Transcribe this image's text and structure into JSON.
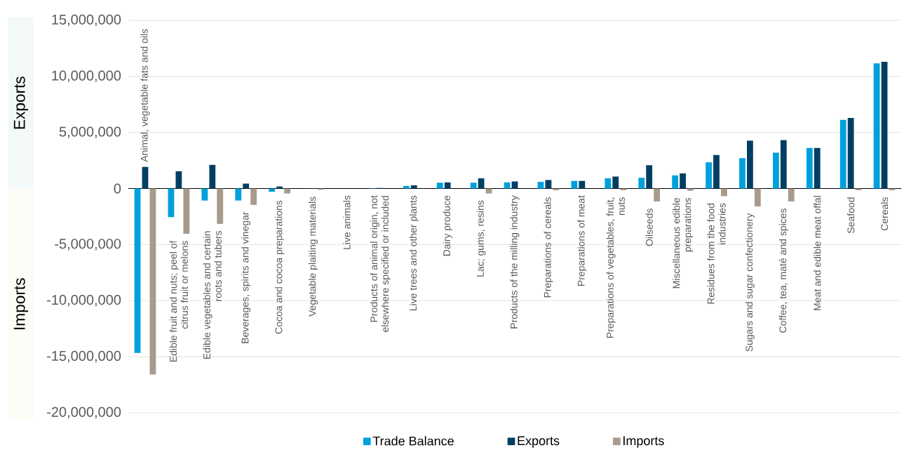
{
  "chart_data": {
    "type": "bar",
    "categories": [
      "Animal, vegetable fats and oils",
      "Edible fruit and nuts; peel of citrus fruit or melons",
      "Edible vegetables and certain roots and tubers",
      "Beverages, spirits and vinegar",
      "Cocoa and cocoa preparations",
      "Vegetable plaiting materials",
      "Live animals",
      "Products of animal origin, not elsewhere specified or included",
      "Live trees and other plants",
      "Dairy produce",
      "Lac; gums, resins",
      "Products of the milling industry",
      "Preparations of cereals",
      "Preparations of meat",
      "Preparations of vegetables, fruit, nuts",
      "Oilseeds",
      "Miscellaneous edible preparations",
      "Residues from the food industries",
      "Sugars and sugar confectionery",
      "Coffee, tea, maté and spices",
      "Meat and edible meat offal",
      "Seafood",
      "Cereals"
    ],
    "series": [
      {
        "name": "Trade Balance",
        "color": "#00a0dc",
        "values": [
          -14660000,
          -2550000,
          -1070000,
          -1070000,
          -290000,
          null,
          0,
          30000,
          230000,
          520000,
          520000,
          550000,
          600000,
          680000,
          910000,
          960000,
          1170000,
          2340000,
          2710000,
          3200000,
          3620000,
          6120000,
          11170000
        ]
      },
      {
        "name": "Exports",
        "color": "#003f63",
        "values": [
          1930000,
          1540000,
          2110000,
          440000,
          180000,
          20000,
          0,
          50000,
          290000,
          550000,
          910000,
          630000,
          760000,
          680000,
          1070000,
          2080000,
          1350000,
          2990000,
          4270000,
          4320000,
          3620000,
          6300000,
          11300000
        ]
      },
      {
        "name": "Imports",
        "color": "#a89a8c",
        "values": [
          -16590000,
          -4040000,
          -3150000,
          -1460000,
          -440000,
          -100000,
          0,
          null,
          null,
          null,
          -440000,
          null,
          -150000,
          0,
          -150000,
          -1150000,
          -200000,
          -680000,
          -1590000,
          -1150000,
          0,
          -150000,
          -150000
        ]
      }
    ],
    "ylim": [
      -20000000,
      15000000
    ],
    "yticks": [
      {
        "value": -20000000,
        "label": "-20,000,000"
      },
      {
        "value": -15000000,
        "label": "-15,000,000"
      },
      {
        "value": -10000000,
        "label": "-10,000,000"
      },
      {
        "value": -5000000,
        "label": "-5,000,000"
      },
      0,
      {
        "value": 5000000,
        "label": "5,000,000"
      },
      {
        "value": 10000000,
        "label": "10,000,000"
      },
      {
        "value": 15000000,
        "label": "15,000,000"
      }
    ],
    "grid": "y",
    "legend": "bottom",
    "annotations": [
      "Exports",
      "Imports"
    ]
  }
}
